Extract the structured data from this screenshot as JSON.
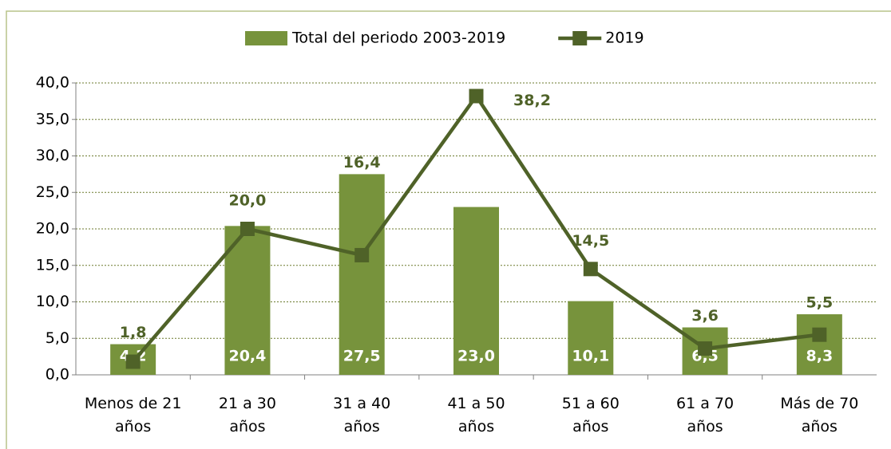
{
  "chart_data": {
    "type": "bar_line",
    "categories": [
      "Menos de 21 años",
      "21 a 30 años",
      "31 a 40 años",
      "41 a 50 años",
      "51 a 60 años",
      "61 a 70 años",
      "Más de 70 años"
    ],
    "series": [
      {
        "name": "Total del periodo 2003-2019",
        "type": "bar",
        "color": "#77933c",
        "values": [
          4.2,
          20.4,
          27.5,
          23.0,
          10.1,
          6.5,
          8.3
        ],
        "value_labels": [
          "4,2",
          "20,4",
          "27,5",
          "23,0",
          "10,1",
          "6,5",
          "8,3"
        ]
      },
      {
        "name": "2019",
        "type": "line",
        "color": "#4f6228",
        "values": [
          1.8,
          20.0,
          16.4,
          38.2,
          14.5,
          3.6,
          5.5
        ],
        "value_labels": [
          "1,8",
          "20,0",
          "16,4",
          "38,2",
          "14,5",
          "3,6",
          "5,5"
        ]
      }
    ],
    "ylim": [
      0,
      40
    ],
    "yticks": [
      {
        "value": 0,
        "label": "0,0"
      },
      {
        "value": 5,
        "label": "5,0"
      },
      {
        "value": 10,
        "label": "10,0"
      },
      {
        "value": 15,
        "label": "15,0"
      },
      {
        "value": 20,
        "label": "20,0"
      },
      {
        "value": 25,
        "label": "25,0"
      },
      {
        "value": 30,
        "label": "30,0"
      },
      {
        "value": 35,
        "label": "35,0"
      },
      {
        "value": 40,
        "label": "40,0"
      }
    ],
    "grid": true,
    "legend": "top"
  }
}
